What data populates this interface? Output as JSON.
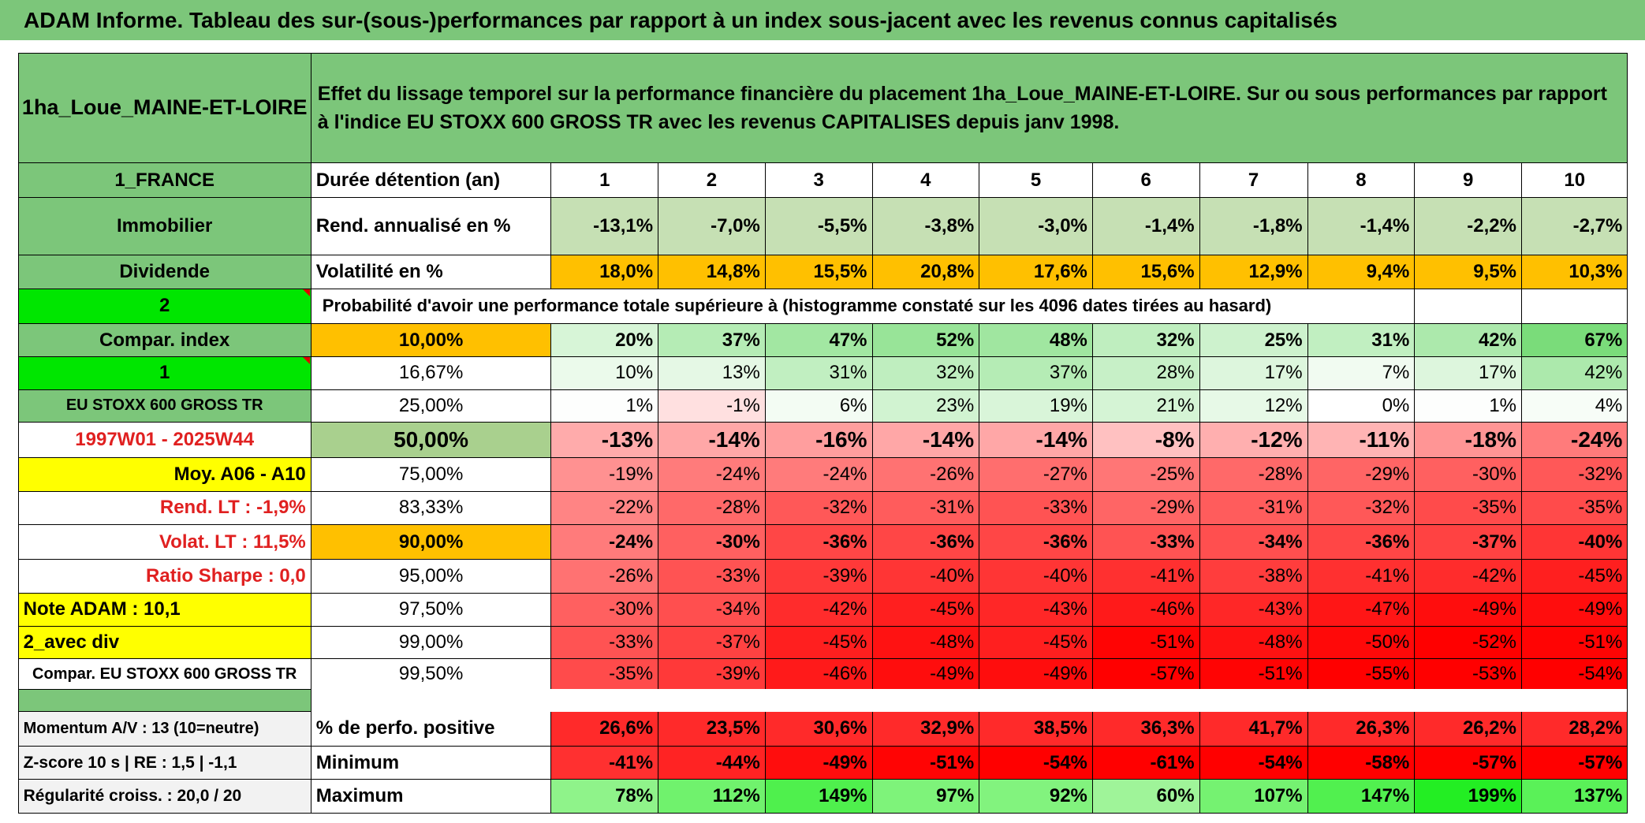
{
  "header": {
    "title": "ADAM Informe. Tableau des sur-(sous-)performances par rapport à un index sous-jacent avec les revenus connus capitalisés"
  },
  "table": {
    "rows": [
      [
        "1ha_Loue_MAINE-ET-LOIRE",
        "Effet du lissage temporel sur la performance financière du placement 1ha_Loue_MAINE-ET-LOIRE. Sur ou sous performances par rapport à l'indice EU STOXX 600 GROSS TR avec les revenus CAPITALISES depuis janv 1998."
      ],
      [
        "1_FRANCE",
        "Durée détention (an)",
        "1",
        "2",
        "3",
        "4",
        "5",
        "6",
        "7",
        "8",
        "9",
        "10"
      ],
      [
        "Immobilier",
        "Rend. annualisé en %",
        "-13,1%",
        "-7,0%",
        "-5,5%",
        "-3,8%",
        "-3,0%",
        "-1,4%",
        "-1,8%",
        "-1,4%",
        "-2,2%",
        "-2,7%"
      ],
      [
        "Dividende",
        "Volatilité en %",
        "18,0%",
        "14,8%",
        "15,5%",
        "20,8%",
        "17,6%",
        "15,6%",
        "12,9%",
        "9,4%",
        "9,5%",
        "10,3%"
      ],
      [
        "2",
        "Probabilité d'avoir une performance totale supérieure à (histogramme constaté sur les 4096 dates tirées au hasard)"
      ],
      [
        "Compar. index",
        "10,00%",
        "20%",
        "37%",
        "47%",
        "52%",
        "48%",
        "32%",
        "25%",
        "31%",
        "42%",
        "67%"
      ],
      [
        "1",
        "16,67%",
        "10%",
        "13%",
        "31%",
        "32%",
        "37%",
        "28%",
        "17%",
        "7%",
        "17%",
        "42%"
      ],
      [
        "EU STOXX 600 GROSS TR",
        "25,00%",
        "1%",
        "-1%",
        "6%",
        "23%",
        "19%",
        "21%",
        "12%",
        "0%",
        "1%",
        "4%"
      ],
      [
        "1997W01 - 2025W44",
        "50,00%",
        "-13%",
        "-14%",
        "-16%",
        "-14%",
        "-14%",
        "-8%",
        "-12%",
        "-11%",
        "-18%",
        "-24%"
      ],
      [
        "Moy. A06 - A10",
        "75,00%",
        "-19%",
        "-24%",
        "-24%",
        "-26%",
        "-27%",
        "-25%",
        "-28%",
        "-29%",
        "-30%",
        "-32%"
      ],
      [
        "Rend. LT :    -1,9%",
        "83,33%",
        "-22%",
        "-28%",
        "-32%",
        "-31%",
        "-33%",
        "-29%",
        "-31%",
        "-32%",
        "-35%",
        "-35%"
      ],
      [
        "Volat. LT :   11,5%",
        "90,00%",
        "-24%",
        "-30%",
        "-36%",
        "-36%",
        "-36%",
        "-33%",
        "-34%",
        "-36%",
        "-37%",
        "-40%"
      ],
      [
        "Ratio Sharpe :    0,0",
        "95,00%",
        "-26%",
        "-33%",
        "-39%",
        "-40%",
        "-40%",
        "-41%",
        "-38%",
        "-41%",
        "-42%",
        "-45%"
      ],
      [
        "Note ADAM : 10,1",
        "97,50%",
        "-30%",
        "-34%",
        "-42%",
        "-45%",
        "-43%",
        "-46%",
        "-43%",
        "-47%",
        "-49%",
        "-49%"
      ],
      [
        "2_avec div",
        "99,00%",
        "-33%",
        "-37%",
        "-45%",
        "-48%",
        "-45%",
        "-51%",
        "-48%",
        "-50%",
        "-52%",
        "-51%"
      ],
      [
        "Compar. EU STOXX 600 GROSS TR",
        "99,50%",
        "-35%",
        "-39%",
        "-46%",
        "-49%",
        "-49%",
        "-57%",
        "-51%",
        "-55%",
        "-53%",
        "-54%"
      ],
      [
        "Momentum A/V : 13 (10=neutre)",
        "% de perfo. positive",
        "26,6%",
        "23,5%",
        "30,6%",
        "32,9%",
        "38,5%",
        "36,3%",
        "41,7%",
        "26,3%",
        "26,2%",
        "28,2%"
      ],
      [
        "Z-score 10 s | RE : 1,5 | -1,1",
        "Minimum",
        "-41%",
        "-44%",
        "-49%",
        "-51%",
        "-54%",
        "-61%",
        "-54%",
        "-58%",
        "-57%",
        "-57%"
      ],
      [
        "Régularité croiss. : 20,0 / 20",
        "Maximum",
        "78%",
        "112%",
        "149%",
        "97%",
        "92%",
        "60%",
        "107%",
        "147%",
        "199%",
        "137%"
      ]
    ]
  }
}
